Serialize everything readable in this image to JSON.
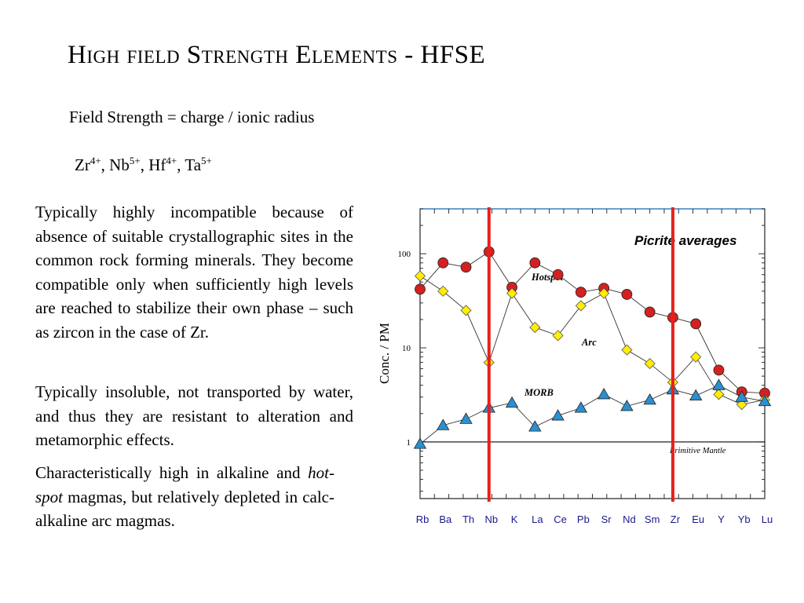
{
  "slide": {
    "title": "High field Strength Elements - HFSE",
    "subtitle": "Field Strength = charge / ionic radius",
    "ions": [
      {
        "symbol": "Zr",
        "charge": "4+",
        "sep": ", "
      },
      {
        "symbol": "Nb",
        "charge": "5+",
        "sep": ", "
      },
      {
        "symbol": "Hf",
        "charge": "4+",
        "sep": ", "
      },
      {
        "symbol": "Ta",
        "charge": "5+",
        "sep": ""
      }
    ],
    "paragraph1": "Typically highly incompatible because of absence of suitable crystallographic sites in the common rock forming minerals.  They become compatible only when  sufficiently high levels are reached to stabilize their own phase – such as zircon in the case of Zr.",
    "paragraph2": "Typically insoluble, not transported by water, and thus they are resistant to alteration and metamorphic effects.",
    "paragraph3": {
      "before": "Characteristically high in alkaline and ",
      "emph": "hot-spot",
      "after": " magmas, but relatively depleted in calc-alkaline arc magmas."
    }
  },
  "chart_data": {
    "type": "line",
    "title": "Picrite averages",
    "ylabel": "Conc. / PM",
    "y_scale": "log",
    "ylim": [
      0.25,
      300
    ],
    "y_ticks": [
      1,
      10,
      100
    ],
    "categories": [
      "Rb",
      "Ba",
      "Th",
      "Nb",
      "K",
      "La",
      "Ce",
      "Pb",
      "Sr",
      "Nd",
      "Sm",
      "Zr",
      "Eu",
      "Y",
      "Yb",
      "Lu"
    ],
    "category_slots": [
      0,
      1,
      2,
      3,
      4,
      5,
      6,
      7,
      8,
      9,
      10,
      11,
      12,
      13,
      14,
      15
    ],
    "series": [
      {
        "name": "Hotspot",
        "marker": "circle",
        "color": "#d42020",
        "values": [
          42,
          80,
          72,
          105,
          44,
          80,
          60,
          39,
          43,
          37,
          24,
          21,
          18,
          5.8,
          3.4,
          3.3
        ]
      },
      {
        "name": "Arc",
        "marker": "diamond",
        "color": "#ffee00",
        "values": [
          58,
          40,
          25,
          7,
          38,
          16.5,
          13.5,
          28,
          38,
          9.5,
          6.8,
          4.3,
          8,
          3.2,
          2.5,
          2.8
        ]
      },
      {
        "name": "MORB",
        "marker": "triangle",
        "color": "#2b8fd0",
        "values": [
          0.95,
          1.5,
          1.75,
          2.3,
          2.6,
          1.45,
          1.9,
          2.3,
          3.2,
          2.4,
          2.8,
          3.6,
          3.1,
          4,
          3,
          2.7
        ]
      }
    ],
    "reference_line": {
      "label": "Primitive Mantle",
      "value": 1
    },
    "highlight_lines": [
      "Nb",
      "Zr"
    ],
    "highlight_color": "#e8201a",
    "grid": false
  }
}
